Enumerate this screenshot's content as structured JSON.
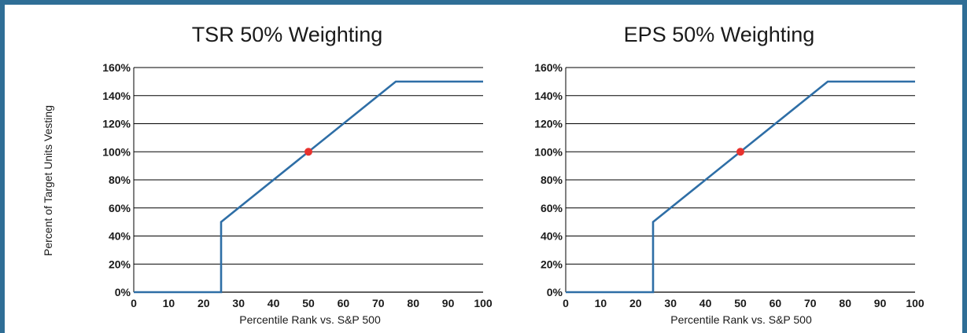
{
  "colors": {
    "frame": "#2f6e96",
    "line": "#2e6ea6",
    "target_point": "#e8322e",
    "grid": "#000000"
  },
  "shared_ylabel": "Percent of Target Units Vesting",
  "chart_data": [
    {
      "type": "line",
      "title": "TSR 50% Weighting",
      "xlabel": "Percentile Rank vs. S&P 500",
      "ylabel": "Percent of Target Units Vesting",
      "xlim": [
        0,
        100
      ],
      "ylim": [
        0,
        160
      ],
      "x_ticks": [
        0,
        10,
        20,
        30,
        40,
        50,
        60,
        70,
        80,
        90,
        100
      ],
      "y_ticks": [
        "0%",
        "20%",
        "40%",
        "60%",
        "80%",
        "100%",
        "120%",
        "140%",
        "160%"
      ],
      "grid": "horizontal",
      "series": [
        {
          "x": [
            0,
            25,
            25,
            75,
            100
          ],
          "y": [
            0,
            0,
            50,
            150,
            150
          ]
        }
      ],
      "highlight_point": {
        "x": 50,
        "y": 100
      }
    },
    {
      "type": "line",
      "title": "EPS 50% Weighting",
      "xlabel": "Percentile Rank vs. S&P 500",
      "ylabel": "",
      "xlim": [
        0,
        100
      ],
      "ylim": [
        0,
        160
      ],
      "x_ticks": [
        0,
        10,
        20,
        30,
        40,
        50,
        60,
        70,
        80,
        90,
        100
      ],
      "y_ticks": [
        "0%",
        "20%",
        "40%",
        "60%",
        "80%",
        "100%",
        "120%",
        "140%",
        "160%"
      ],
      "grid": "horizontal",
      "series": [
        {
          "x": [
            0,
            25,
            25,
            75,
            100
          ],
          "y": [
            0,
            0,
            50,
            150,
            150
          ]
        }
      ],
      "highlight_point": {
        "x": 50,
        "y": 100
      }
    }
  ]
}
